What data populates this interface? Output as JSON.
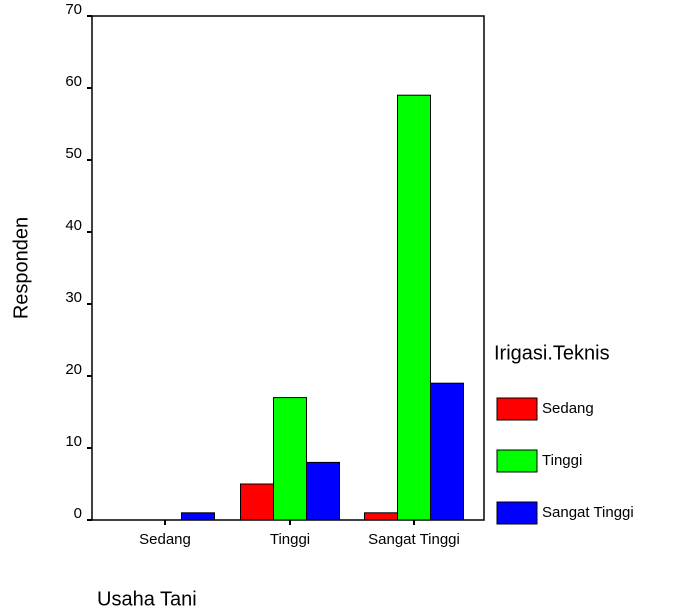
{
  "chart_data": {
    "type": "bar",
    "x_label": "Usaha Tani",
    "y_label": "Responden",
    "legend_title": "Irigasi.Teknis",
    "categories": [
      "Sedang",
      "Tinggi",
      "Sangat Tinggi"
    ],
    "series": [
      {
        "name": "Sedang",
        "color": "#ff0000",
        "values": [
          0,
          5,
          1
        ]
      },
      {
        "name": "Tinggi",
        "color": "#00ff00",
        "values": [
          0,
          17,
          59
        ]
      },
      {
        "name": "Sangat Tinggi",
        "color": "#0000ff",
        "values": [
          1,
          8,
          19
        ]
      }
    ],
    "ylim": [
      0,
      70
    ],
    "yticks": [
      0,
      10,
      20,
      30,
      40,
      50,
      60,
      70
    ],
    "legend": "right"
  }
}
